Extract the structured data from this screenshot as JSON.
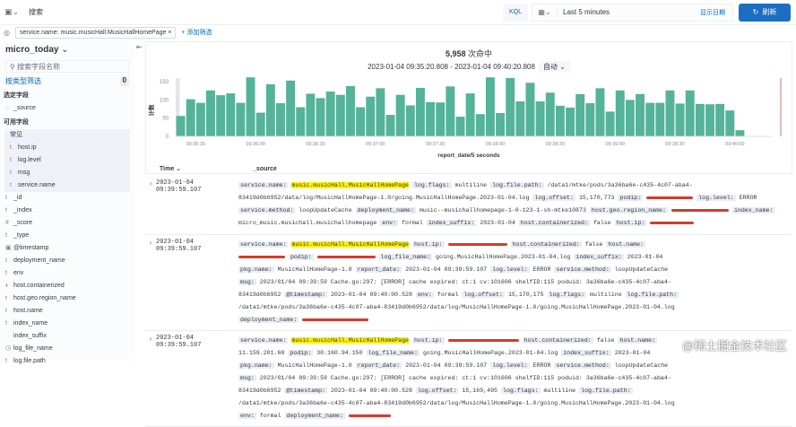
{
  "top": {
    "search_placeholder": "搜索",
    "kql": "KQL",
    "time_range": "Last 5 minutes",
    "show_dates": "显示日期",
    "refresh": "刷新"
  },
  "filters": {
    "pill": "service.name: music.musicHall.MusicHallHomePage",
    "add": "+ 添加筛选"
  },
  "sidebar": {
    "index": "micro_today",
    "search_placeholder": "搜索字段名称",
    "filter_by_type": "按类型筛选",
    "filter_count": "0",
    "selected_title": "选定字段",
    "selected": [
      "_source"
    ],
    "available_title": "可用字段",
    "popular_title": "常见",
    "popular": [
      {
        "t": "t",
        "n": "host.ip"
      },
      {
        "t": "t",
        "n": "log.level"
      },
      {
        "t": "t",
        "n": "msg"
      },
      {
        "t": "t",
        "n": "service.name"
      }
    ],
    "fields": [
      {
        "t": "t",
        "n": "_id"
      },
      {
        "t": "t",
        "n": "_index"
      },
      {
        "t": "#",
        "n": "_score"
      },
      {
        "t": "t",
        "n": "_type"
      },
      {
        "t": "▣",
        "n": "@timestamp"
      },
      {
        "t": "t",
        "n": "deployment_name"
      },
      {
        "t": "t",
        "n": "env"
      },
      {
        "t": "◐",
        "n": "host.containerized"
      },
      {
        "t": "t",
        "n": "host.geo.region_name"
      },
      {
        "t": "t",
        "n": "host.name"
      },
      {
        "t": "t",
        "n": "index_name"
      },
      {
        "t": "",
        "n": "index_suffix"
      },
      {
        "t": "◷",
        "n": "log_file_name"
      },
      {
        "t": "t",
        "n": "log.file.path"
      }
    ]
  },
  "chart": {
    "hits_count": "5,958",
    "hits_label": " 次命中",
    "range": "2023-01-04 09:35:20.808 - 2023-01-04 09:40:20.808",
    "interval": "自动"
  },
  "chart_data": {
    "type": "bar",
    "xlabel": "report_date/5 seconds",
    "ylabel": "计数",
    "ylim": [
      0,
      160
    ],
    "yticks": [
      0,
      50,
      100,
      150
    ],
    "xticks": [
      "09:35:30",
      "09:36:00",
      "09:36:30",
      "09:37:00",
      "09:37:30",
      "09:38:00",
      "09:38:30",
      "09:39:00",
      "09:39:30",
      "09:40:00"
    ],
    "values": [
      56,
      102,
      92,
      126,
      113,
      118,
      92,
      162,
      65,
      143,
      91,
      153,
      80,
      117,
      105,
      123,
      114,
      138,
      80,
      109,
      132,
      59,
      114,
      85,
      133,
      94,
      93,
      137,
      54,
      118,
      61,
      162,
      64,
      160,
      96,
      147,
      96,
      120,
      84,
      79,
      116,
      91,
      132,
      68,
      126,
      100,
      116,
      92,
      92,
      126,
      90,
      126,
      89,
      88,
      89,
      71,
      17
    ],
    "color": "#54b399"
  },
  "table": {
    "col_time": "Time",
    "col_source": "_source",
    "rows": [
      {
        "time": "2023-01-04 09:39:59.107",
        "fields": [
          [
            "service.name:",
            "music.musicHall.MusicHallHomePage",
            1
          ],
          [
            "log.flags:",
            "multiline"
          ],
          [
            "log.file.path:",
            "/data1/mtke/pods/3a36ba6e-c435-4c07-aba4-83419d0b6952/data/log/MusicHallHomePage-1.0/going.MusicHallHomePage.2023-01-04.log"
          ],
          [
            "log.offset:",
            "15,170,773"
          ],
          [
            "podip:",
            "",
            2
          ],
          [
            "log.level:",
            "ERROR"
          ],
          [
            "service.method:",
            "loopUpdateCache"
          ],
          [
            "deployment_name:",
            "music--musichallhomepage-1-0-123-1-sh-mtke10873"
          ],
          [
            "host.geo.region_name:",
            "",
            2
          ],
          [
            "index_name:",
            "micro_music.musichall.musichallhomepage"
          ],
          [
            "env:",
            "formal"
          ],
          [
            "index_suffix:",
            "2023-01-04"
          ],
          [
            "host.containerized:",
            "false"
          ],
          [
            "host.ip:",
            "",
            2
          ]
        ]
      },
      {
        "time": "2023-01-04 09:39:59.107",
        "fields": [
          [
            "service.name:",
            "music.musicHall.MusicHallHomePage",
            1
          ],
          [
            "host.ip:",
            "",
            2
          ],
          [
            "host.containerized:",
            "false"
          ],
          [
            "host.name:",
            "",
            2
          ],
          [
            "podip:",
            "",
            2
          ],
          [
            "log_file_name:",
            "going.MusicHallHomePage.2023-01-04.log"
          ],
          [
            "index_suffix:",
            "2023-01-04"
          ],
          [
            "pkg.name:",
            "MusicHallHomePage-1.0"
          ],
          [
            "report_date:",
            "2023-01-04 09:39:59.107"
          ],
          [
            "log.level:",
            "ERROR"
          ],
          [
            "service.method:",
            "loopUpdateCache"
          ],
          [
            "msg:",
            "2023/01/04 09:39:59 Cache.go:297: [ERROR] cache expired: ct:1 cv:101606 shelfID:115 poduid: 3a36ba6e-c435-4c07-aba4-83419d0b6952"
          ],
          [
            "@timestamp:",
            "2023-01-04 09:40:00.528"
          ],
          [
            "env:",
            "formal"
          ],
          [
            "log.offset:",
            "15,170,175"
          ],
          [
            "log.flags:",
            "multiline"
          ],
          [
            "log.file.path:",
            "/data1/mtke/pods/3a36ba6e-c435-4c07-aba4-83419d0b6952/data/log/MusicHallHomePage-1.0/going.MusicHallHomePage.2023-01-04.log"
          ],
          [
            "deployment_name:",
            "",
            2
          ]
        ]
      },
      {
        "time": "2023-01-04 09:39:59.107",
        "fields": [
          [
            "service.name:",
            "music.musicHall.MusicHallHomePage",
            1
          ],
          [
            "host.ip:",
            "",
            2
          ],
          [
            "host.containerized:",
            "false"
          ],
          [
            "host.name:",
            "11.159.201.68"
          ],
          [
            "podip:",
            "30.160.94.150"
          ],
          [
            "log_file_name:",
            "going.MusicHallHomePage.2023-01-04.log"
          ],
          [
            "index_suffix:",
            "2023-01-04"
          ],
          [
            "pkg.name:",
            "MusicHallHomePage-1.0"
          ],
          [
            "report_date:",
            "2023-01-04 09:39:59.107"
          ],
          [
            "log.level:",
            "ERROR"
          ],
          [
            "service.method:",
            "loopUpdateCache"
          ],
          [
            "msg:",
            "2023/01/04 09:39:59 Cache.go:297: [ERROR] cache expired: ct:1 cv:101606 shelfID:115 poduid: 3a36ba6e-c435-4c07-aba4-83419d0b6952"
          ],
          [
            "@timestamp:",
            "2023-01-04 09:40:00.528"
          ],
          [
            "log.offset:",
            "15,169,495"
          ],
          [
            "log.flags:",
            "multiline"
          ],
          [
            "log.file.path:",
            "/data1/mtke/pods/3a36ba6e-c435-4c07-aba4-83419d0b6952/data/log/MusicHallHomePage-1.0/going.MusicHallHomePage.2023-01-04.log"
          ],
          [
            "env:",
            "formal"
          ],
          [
            "deployment_name:",
            "",
            2
          ]
        ]
      }
    ]
  },
  "watermark": "@稀土掘金技术社区"
}
